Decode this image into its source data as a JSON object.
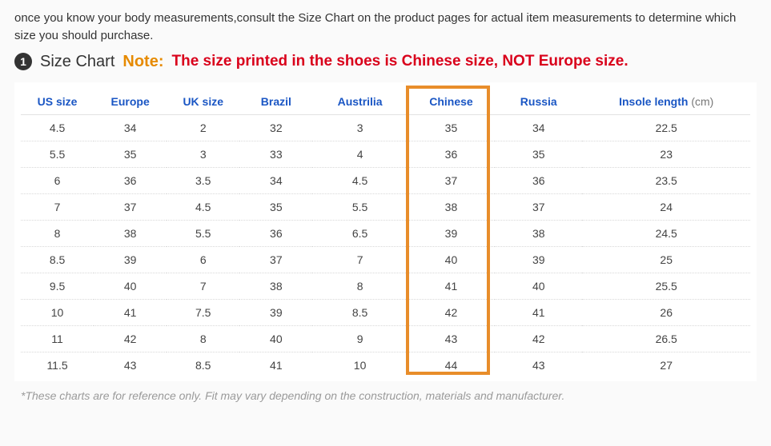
{
  "intro": "once you know your body measurements,consult the Size Chart on the product pages for actual item measurements to determine which size you should purchase.",
  "bullet_number": "1",
  "chart_title": "Size Chart",
  "note_label": "Note:",
  "note_text": "The size printed in the shoes is Chinese size, NOT Europe size.",
  "columns": [
    "US size",
    "Europe",
    "UK size",
    "Brazil",
    "Austrilia",
    "Chinese",
    "Russia",
    "Insole length"
  ],
  "insole_unit": "(cm)",
  "rows": [
    [
      "4.5",
      "34",
      "2",
      "32",
      "3",
      "35",
      "34",
      "22.5"
    ],
    [
      "5.5",
      "35",
      "3",
      "33",
      "4",
      "36",
      "35",
      "23"
    ],
    [
      "6",
      "36",
      "3.5",
      "34",
      "4.5",
      "37",
      "36",
      "23.5"
    ],
    [
      "7",
      "37",
      "4.5",
      "35",
      "5.5",
      "38",
      "37",
      "24"
    ],
    [
      "8",
      "38",
      "5.5",
      "36",
      "6.5",
      "39",
      "38",
      "24.5"
    ],
    [
      "8.5",
      "39",
      "6",
      "37",
      "7",
      "40",
      "39",
      "25"
    ],
    [
      "9.5",
      "40",
      "7",
      "38",
      "8",
      "41",
      "40",
      "25.5"
    ],
    [
      "10",
      "41",
      "7.5",
      "39",
      "8.5",
      "42",
      "41",
      "26"
    ],
    [
      "11",
      "42",
      "8",
      "40",
      "9",
      "43",
      "42",
      "26.5"
    ],
    [
      "11.5",
      "43",
      "8.5",
      "41",
      "10",
      "44",
      "43",
      "27"
    ]
  ],
  "highlight_column_index": 5,
  "footnote": "*These charts are for reference only. Fit may vary depending on the construction, materials and manufacturer.",
  "colors": {
    "header_text": "#1a56c4",
    "note_label": "#e68a00",
    "note_text": "#d9001b",
    "highlight_border": "#e88d2a",
    "body_bg": "#fafafa",
    "table_bg": "#ffffff",
    "cell_text": "#444444",
    "footnote_text": "#9a9a9a"
  }
}
